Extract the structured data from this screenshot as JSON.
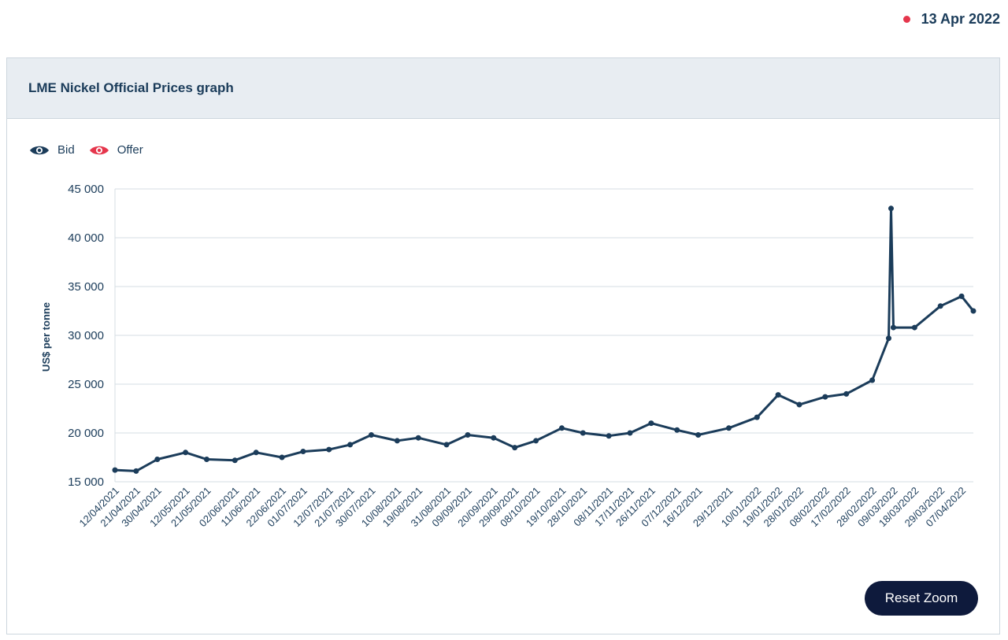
{
  "header": {
    "date": "13 Apr 2022"
  },
  "panel": {
    "title": "LME Nickel Official Prices graph",
    "reset_label": "Reset Zoom"
  },
  "legend": [
    {
      "label": "Bid",
      "icon": "eye-icon",
      "color": "#1b3c5a"
    },
    {
      "label": "Offer",
      "icon": "eye-icon",
      "color": "#e5364c"
    }
  ],
  "colors": {
    "accent": "#e5364c",
    "series": "#1b3c5a",
    "button": "#0e1a3c"
  },
  "chart_data": {
    "type": "line",
    "title": "LME Nickel Official Prices graph",
    "xlabel": "",
    "ylabel": "US$ per tonne",
    "ylim": [
      15000,
      45000
    ],
    "yticks": [
      15000,
      20000,
      25000,
      30000,
      35000,
      40000,
      45000
    ],
    "ytick_labels": [
      "15 000",
      "20 000",
      "25 000",
      "30 000",
      "35 000",
      "40 000",
      "45 000"
    ],
    "grid": true,
    "xtick_labels": [
      "12/04/2021",
      "21/04/2021",
      "30/04/2021",
      "12/05/2021",
      "21/05/2021",
      "02/06/2021",
      "11/06/2021",
      "22/06/2021",
      "01/07/2021",
      "12/07/2021",
      "21/07/2021",
      "30/07/2021",
      "10/08/2021",
      "19/08/2021",
      "31/08/2021",
      "09/09/2021",
      "20/09/2021",
      "29/09/2021",
      "08/10/2021",
      "19/10/2021",
      "28/10/2021",
      "08/11/2021",
      "17/11/2021",
      "26/11/2021",
      "07/12/2021",
      "16/12/2021",
      "29/12/2021",
      "10/01/2022",
      "19/01/2022",
      "28/01/2022",
      "08/02/2022",
      "17/02/2022",
      "28/02/2022",
      "09/03/2022",
      "18/03/2022",
      "29/03/2022",
      "07/04/2022"
    ],
    "series": [
      {
        "name": "Bid",
        "x": [
          "12/04/2021",
          "21/04/2021",
          "30/04/2021",
          "12/05/2021",
          "21/05/2021",
          "02/06/2021",
          "11/06/2021",
          "22/06/2021",
          "01/07/2021",
          "12/07/2021",
          "21/07/2021",
          "30/07/2021",
          "10/08/2021",
          "19/08/2021",
          "31/08/2021",
          "09/09/2021",
          "20/09/2021",
          "29/09/2021",
          "08/10/2021",
          "19/10/2021",
          "28/10/2021",
          "08/11/2021",
          "17/11/2021",
          "26/11/2021",
          "07/12/2021",
          "16/12/2021",
          "29/12/2021",
          "10/01/2022",
          "19/01/2022",
          "28/01/2022",
          "08/02/2022",
          "17/02/2022",
          "28/02/2022",
          "07/03/2022",
          "08/03/2022",
          "09/03/2022",
          "18/03/2022",
          "29/03/2022",
          "07/04/2022",
          "12/04/2022"
        ],
        "values": [
          16200,
          16100,
          17300,
          18000,
          17300,
          17200,
          18000,
          17500,
          18100,
          18300,
          18800,
          19800,
          19200,
          19500,
          18800,
          19800,
          19500,
          18500,
          19200,
          20500,
          20000,
          19700,
          20000,
          21000,
          20300,
          19800,
          20500,
          21600,
          23900,
          22900,
          23700,
          24000,
          25400,
          29700,
          43000,
          30800,
          30800,
          33000,
          34000,
          32500
        ]
      }
    ]
  }
}
